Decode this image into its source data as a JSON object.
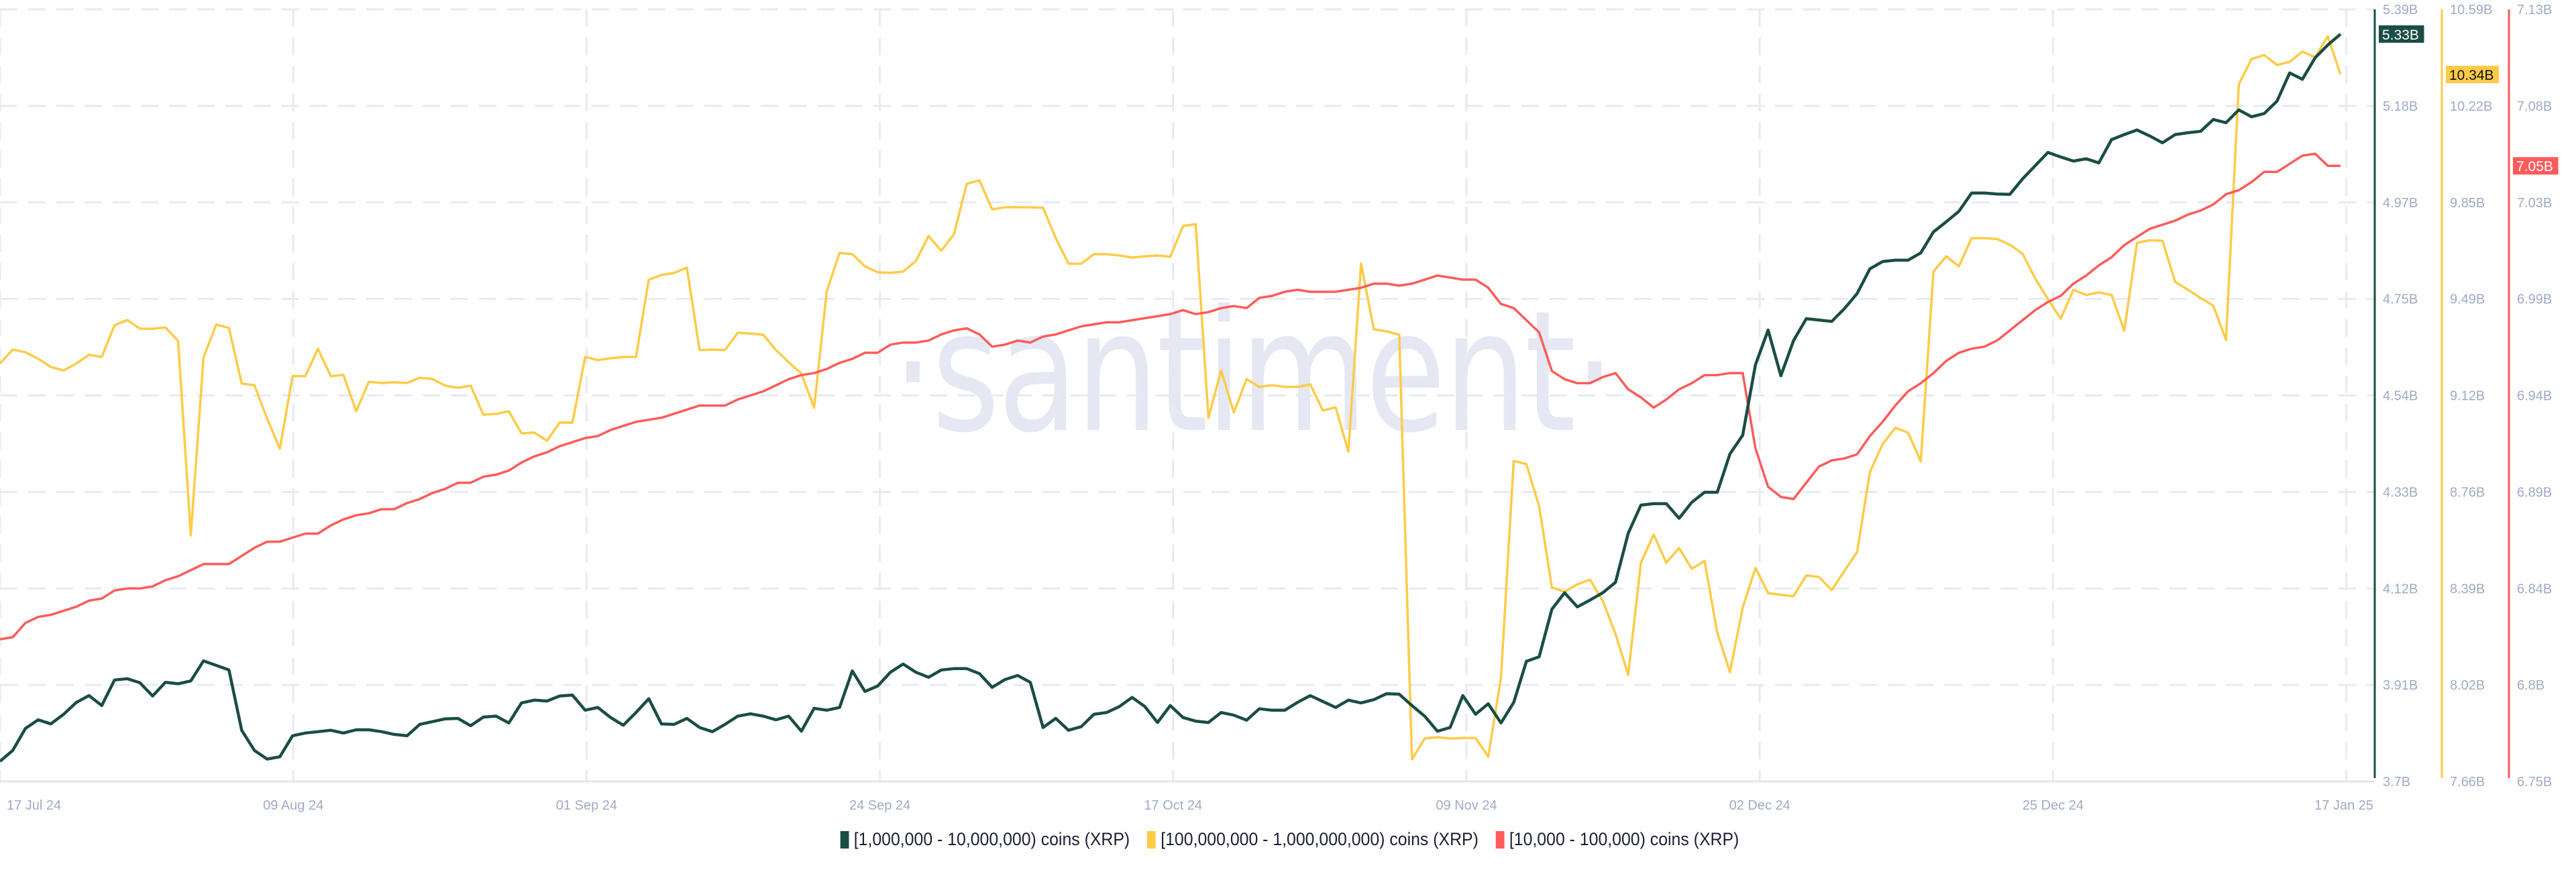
{
  "watermark": "·santiment·",
  "colors": {
    "series_1m_10m": "#1a4d45",
    "series_100m_1b": "#ffcb47",
    "series_10k_100k": "#ff5b5b",
    "axis_text": "#9faac4",
    "grid": "#e7eaf3",
    "tag_text_light": "#ffffff",
    "tag_text_dark": "#111111"
  },
  "legend": [
    {
      "label": "[1,000,000 - 10,000,000) coins (XRP)",
      "color": "#1a4d45"
    },
    {
      "label": "[100,000,000 - 1,000,000,000) coins (XRP)",
      "color": "#ffcb47"
    },
    {
      "label": "[10,000 - 100,000) coins (XRP)",
      "color": "#ff5b5b"
    }
  ],
  "chart_data": {
    "type": "line",
    "title": "",
    "xlabel": "",
    "ylabel": "",
    "grid": true,
    "legend_position": "bottom",
    "x_range": [
      "17 Jul 24",
      "17 Jan 25"
    ],
    "x_tick_labels": [
      "17 Jul 24",
      "09 Aug 24",
      "01 Sep 24",
      "24 Sep 24",
      "17 Oct 24",
      "09 Nov 24",
      "02 Dec 24",
      "25 Dec 24",
      "17 Jan 25"
    ],
    "axes": [
      {
        "series": 0,
        "ylim": [
          3.7,
          5.39
        ],
        "ticks": [
          "5.39B",
          "5.18B",
          "4.97B",
          "4.75B",
          "4.54B",
          "4.33B",
          "4.12B",
          "3.91B",
          "3.7B"
        ],
        "current_tag": "5.33B"
      },
      {
        "series": 1,
        "ylim": [
          7.66,
          10.59
        ],
        "ticks": [
          "10.59B",
          "10.22B",
          "9.85B",
          "9.49B",
          "9.12B",
          "8.76B",
          "8.39B",
          "8.02B",
          "7.66B"
        ],
        "current_tag": "10.34B"
      },
      {
        "series": 2,
        "ylim": [
          6.75,
          7.13
        ],
        "ticks": [
          "7.13B",
          "7.08B",
          "7.03B",
          "6.99B",
          "6.94B",
          "6.89B",
          "6.84B",
          "6.8B",
          "6.75B"
        ],
        "current_tag": "7.05B"
      }
    ],
    "units": "billion XRP",
    "series": [
      {
        "name": "[1,000,000 - 10,000,000) coins (XRP)",
        "color": "#1a4d45",
        "values": [
          3.744,
          3.768,
          3.816,
          3.835,
          3.826,
          3.847,
          3.873,
          3.888,
          3.866,
          3.922,
          3.925,
          3.916,
          3.887,
          3.917,
          3.914,
          3.92,
          3.964,
          3.954,
          3.944,
          3.812,
          3.768,
          3.749,
          3.754,
          3.8,
          3.806,
          3.809,
          3.812,
          3.806,
          3.813,
          3.813,
          3.809,
          3.803,
          3.8,
          3.825,
          3.831,
          3.837,
          3.838,
          3.822,
          3.841,
          3.843,
          3.828,
          3.872,
          3.878,
          3.876,
          3.887,
          3.889,
          3.856,
          3.862,
          3.84,
          3.823,
          3.851,
          3.881,
          3.826,
          3.825,
          3.838,
          3.818,
          3.809,
          3.825,
          3.843,
          3.848,
          3.843,
          3.835,
          3.843,
          3.81,
          3.86,
          3.856,
          3.862,
          3.942,
          3.897,
          3.909,
          3.939,
          3.957,
          3.939,
          3.928,
          3.944,
          3.947,
          3.947,
          3.936,
          3.906,
          3.923,
          3.932,
          3.917,
          3.818,
          3.838,
          3.812,
          3.82,
          3.847,
          3.851,
          3.864,
          3.884,
          3.864,
          3.829,
          3.866,
          3.84,
          3.832,
          3.829,
          3.851,
          3.845,
          3.834,
          3.859,
          3.856,
          3.856,
          3.873,
          3.888,
          3.875,
          3.862,
          3.878,
          3.872,
          3.879,
          3.892,
          3.891,
          3.866,
          3.843,
          3.81,
          3.818,
          3.888,
          3.847,
          3.87,
          3.828,
          3.873,
          3.963,
          3.973,
          4.077,
          4.113,
          4.082,
          4.097,
          4.113,
          4.136,
          4.243,
          4.305,
          4.308,
          4.308,
          4.276,
          4.311,
          4.333,
          4.333,
          4.417,
          4.458,
          4.612,
          4.688,
          4.588,
          4.665,
          4.713,
          4.71,
          4.707,
          4.735,
          4.768,
          4.822,
          4.838,
          4.841,
          4.841,
          4.857,
          4.903,
          4.925,
          4.948,
          4.988,
          4.988,
          4.986,
          4.985,
          5.019,
          5.048,
          5.077,
          5.067,
          5.058,
          5.063,
          5.054,
          5.105,
          5.116,
          5.126,
          5.113,
          5.098,
          5.116,
          5.12,
          5.123,
          5.149,
          5.142,
          5.17,
          5.155,
          5.162,
          5.189,
          5.251,
          5.237,
          5.284,
          5.312,
          5.336
        ]
      },
      {
        "name": "[100,000,000 - 1,000,000,000) coins (XRP)",
        "color": "#ffcb47",
        "values": [
          9.246,
          9.299,
          9.289,
          9.264,
          9.233,
          9.22,
          9.246,
          9.279,
          9.271,
          9.391,
          9.411,
          9.378,
          9.378,
          9.383,
          9.332,
          8.594,
          9.269,
          9.394,
          9.381,
          9.17,
          9.164,
          9.037,
          8.923,
          9.198,
          9.198,
          9.302,
          9.198,
          9.203,
          9.065,
          9.177,
          9.172,
          9.175,
          9.172,
          9.192,
          9.187,
          9.162,
          9.154,
          9.162,
          9.052,
          9.055,
          9.065,
          8.981,
          8.984,
          8.953,
          9.022,
          9.022,
          9.271,
          9.259,
          9.266,
          9.271,
          9.271,
          9.564,
          9.582,
          9.59,
          9.61,
          9.297,
          9.299,
          9.297,
          9.363,
          9.36,
          9.355,
          9.297,
          9.251,
          9.208,
          9.078,
          9.521,
          9.666,
          9.661,
          9.615,
          9.592,
          9.59,
          9.595,
          9.635,
          9.73,
          9.674,
          9.737,
          9.928,
          9.941,
          9.831,
          9.839,
          9.839,
          9.839,
          9.837,
          9.722,
          9.625,
          9.625,
          9.661,
          9.661,
          9.656,
          9.648,
          9.653,
          9.656,
          9.651,
          9.768,
          9.775,
          9.04,
          9.22,
          9.06,
          9.187,
          9.157,
          9.164,
          9.157,
          9.157,
          9.167,
          9.068,
          9.08,
          8.912,
          9.625,
          9.376,
          9.368,
          9.355,
          7.744,
          7.823,
          7.828,
          7.823,
          7.825,
          7.825,
          7.754,
          8.054,
          8.877,
          8.864,
          8.704,
          8.396,
          8.38,
          8.408,
          8.426,
          8.345,
          8.22,
          8.065,
          8.49,
          8.597,
          8.49,
          8.546,
          8.467,
          8.497,
          8.225,
          8.075,
          8.319,
          8.47,
          8.375,
          8.368,
          8.363,
          8.442,
          8.436,
          8.386,
          8.459,
          8.531,
          8.834,
          8.94,
          9.002,
          8.984,
          8.874,
          9.595,
          9.653,
          9.615,
          9.722,
          9.722,
          9.719,
          9.697,
          9.663,
          9.569,
          9.49,
          9.416,
          9.526,
          9.506,
          9.516,
          9.506,
          9.371,
          9.704,
          9.714,
          9.712,
          9.556,
          9.526,
          9.495,
          9.465,
          9.335,
          10.305,
          10.402,
          10.417,
          10.379,
          10.391,
          10.43,
          10.409,
          10.488,
          10.343
        ]
      },
      {
        "name": "[10,000 - 100,000) coins (XRP)",
        "color": "#ff5b5b",
        "values": [
          6.82,
          6.821,
          6.828,
          6.831,
          6.832,
          6.834,
          6.836,
          6.839,
          6.84,
          6.844,
          6.845,
          6.845,
          6.846,
          6.849,
          6.851,
          6.854,
          6.857,
          6.857,
          6.857,
          6.861,
          6.865,
          6.868,
          6.868,
          6.87,
          6.872,
          6.872,
          6.876,
          6.879,
          6.881,
          6.882,
          6.884,
          6.884,
          6.887,
          6.889,
          6.892,
          6.894,
          6.897,
          6.897,
          6.9,
          6.901,
          6.903,
          6.907,
          6.91,
          6.912,
          6.915,
          6.917,
          6.919,
          6.92,
          6.923,
          6.925,
          6.927,
          6.928,
          6.929,
          6.931,
          6.933,
          6.935,
          6.935,
          6.935,
          6.938,
          6.94,
          6.942,
          6.945,
          6.948,
          6.95,
          6.951,
          6.953,
          6.956,
          6.958,
          6.961,
          6.961,
          6.965,
          6.966,
          6.966,
          6.967,
          6.97,
          6.972,
          6.973,
          6.97,
          6.964,
          6.965,
          6.967,
          6.966,
          6.969,
          6.97,
          6.972,
          6.974,
          6.975,
          6.976,
          6.976,
          6.977,
          6.978,
          6.979,
          6.98,
          6.982,
          6.98,
          6.981,
          6.983,
          6.984,
          6.983,
          6.988,
          6.989,
          6.991,
          6.992,
          6.991,
          6.991,
          6.991,
          6.992,
          6.993,
          6.995,
          6.995,
          6.994,
          6.995,
          6.997,
          6.999,
          6.998,
          6.997,
          6.997,
          6.993,
          6.985,
          6.983,
          6.977,
          6.971,
          6.952,
          6.948,
          6.946,
          6.946,
          6.949,
          6.951,
          6.943,
          6.939,
          6.934,
          6.938,
          6.943,
          6.946,
          6.95,
          6.95,
          6.951,
          6.951,
          6.914,
          6.895,
          6.89,
          6.889,
          6.897,
          6.905,
          6.908,
          6.909,
          6.911,
          6.92,
          6.927,
          6.935,
          6.942,
          6.946,
          6.951,
          6.957,
          6.961,
          6.963,
          6.964,
          6.967,
          6.972,
          6.977,
          6.982,
          6.986,
          6.989,
          6.995,
          6.999,
          7.004,
          7.008,
          7.014,
          7.018,
          7.022,
          7.024,
          7.026,
          7.029,
          7.031,
          7.034,
          7.039,
          7.041,
          7.045,
          7.05,
          7.05,
          7.054,
          7.058,
          7.059,
          7.053,
          7.053
        ]
      }
    ]
  }
}
